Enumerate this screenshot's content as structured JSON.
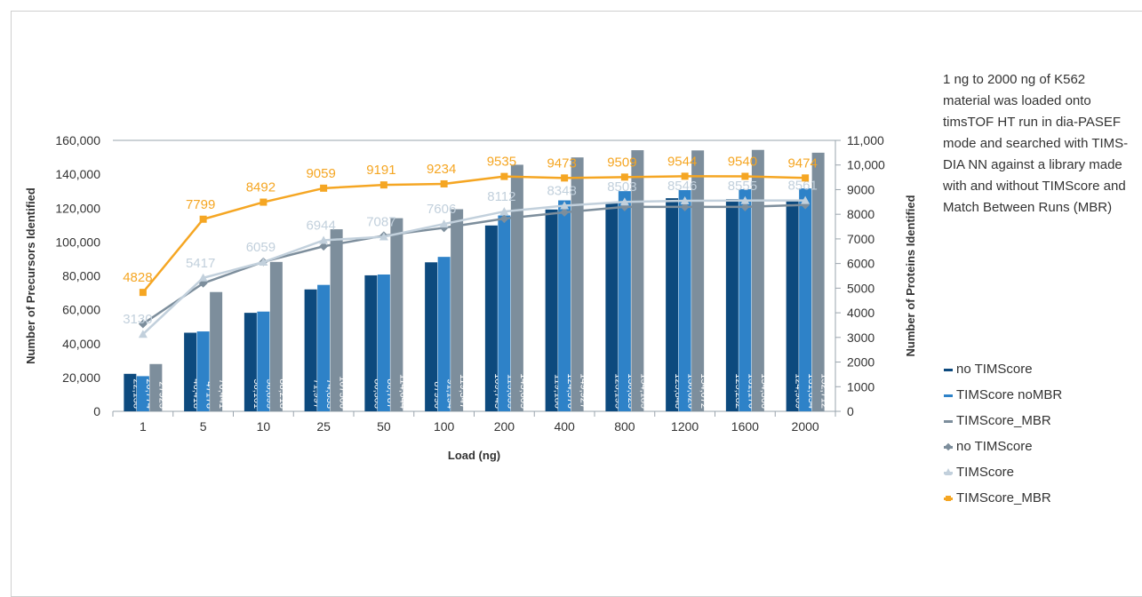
{
  "description": "1 ng to 2000 ng of K562 material was loaded onto timsTOF HT run in dia-PASEF mode and searched with TIMS-DIA NN against a library made with and without TIMScore and Match Between Runs (MBR)",
  "legend": [
    {
      "label": "no TIMScore",
      "kind": "bar",
      "color": "#0d4a7e"
    },
    {
      "label": "TIMScore noMBR",
      "kind": "bar",
      "color": "#2e82c8"
    },
    {
      "label": "TIMScore_MBR",
      "kind": "bar",
      "color": "#7d8e9c"
    },
    {
      "label": "no TIMScore",
      "kind": "line",
      "marker": "diamond",
      "color": "#7d8e9c"
    },
    {
      "label": "TIMScore",
      "kind": "line",
      "marker": "triangle",
      "color": "#c2d0dc"
    },
    {
      "label": "TIMScore_MBR",
      "kind": "line",
      "marker": "square",
      "color": "#f5a623"
    }
  ],
  "chart_data": {
    "type": "bar",
    "title": "",
    "xlabel": "Load (ng)",
    "ylabel": "Number of Precursors Identified",
    "y2label": "Number of Proteins Identified",
    "categories": [
      "1",
      "5",
      "10",
      "25",
      "50",
      "100",
      "200",
      "400",
      "800",
      "1200",
      "1600",
      "2000"
    ],
    "ylim": [
      0,
      160000
    ],
    "y2lim": [
      0,
      11000
    ],
    "yticks": [
      "0",
      "20,000",
      "40,000",
      "60,000",
      "80,000",
      "100,000",
      "120,000",
      "140,000",
      "160,000"
    ],
    "y2ticks": [
      "0",
      "1000",
      "2000",
      "3000",
      "4000",
      "5000",
      "6000",
      "7000",
      "8000",
      "9000",
      "10,000",
      "11,000"
    ],
    "bar_series": [
      {
        "name": "no TIMScore",
        "color": "#0d4a7e",
        "values": [
          22138,
          46418,
          58161,
          71997,
          80303,
          87990,
          109745,
          119180,
          123195,
          125848,
          125282,
          124909
        ],
        "labels": [
          "22,138",
          "46,418",
          "58,161",
          "71,997",
          "80,303",
          "87990",
          "109,745",
          "119,180",
          "123,195",
          "125,848",
          "125,282",
          "124,909"
        ]
      },
      {
        "name": "TIMScore noMBR",
        "color": "#2e82c8",
        "values": [
          20774,
          47178,
          58895,
          74653,
          80787,
          91194,
          115655,
          124570,
          130023,
          130626,
          131170,
          131654
        ],
        "labels": [
          "20,774",
          "47178",
          "58,895",
          "74,653",
          "80,787",
          "91,194",
          "115,655",
          "124,570",
          "130,023",
          "130,626",
          "131,170",
          "131,654"
        ]
      },
      {
        "name": "TIMScore_MBR",
        "color": "#7d8e9c",
        "values": [
          27923,
          70441,
          88218,
          107506,
          114044,
          119347,
          145605,
          149927,
          154185,
          154072,
          154366,
          152712
        ],
        "labels": [
          "27923",
          "70,441",
          "88,218",
          "107506",
          "114,044",
          "119,347",
          "145,605",
          "149,927",
          "154,185",
          "154,072",
          "154,366",
          "152,712"
        ]
      }
    ],
    "line_series": [
      {
        "name": "no TIMScore",
        "color": "#7d8e9c",
        "marker": "diamond",
        "values": [
          3550,
          5200,
          6070,
          6700,
          7130,
          7450,
          7820,
          8080,
          8300,
          8300,
          8300,
          8380
        ],
        "labels": []
      },
      {
        "name": "TIMScore",
        "color": "#c2d0dc",
        "marker": "triangle",
        "values": [
          3130,
          5417,
          6059,
          6944,
          7087,
          7606,
          8112,
          8348,
          8503,
          8546,
          8555,
          8561
        ],
        "labels": [
          "3130",
          "5417",
          "6059",
          "6944",
          "7087",
          "7606",
          "8112",
          "8348",
          "8503",
          "8546",
          "8555",
          "8561"
        ]
      },
      {
        "name": "TIMScore_MBR",
        "color": "#f5a623",
        "marker": "square",
        "values": [
          4828,
          7799,
          8492,
          9059,
          9191,
          9234,
          9535,
          9473,
          9509,
          9544,
          9540,
          9474
        ],
        "labels": [
          "4828",
          "7799",
          "8492",
          "9059",
          "9191",
          "9234",
          "9535",
          "9473",
          "9509",
          "9544",
          "9540",
          "9474"
        ]
      }
    ],
    "grid": false,
    "legend": "right"
  }
}
